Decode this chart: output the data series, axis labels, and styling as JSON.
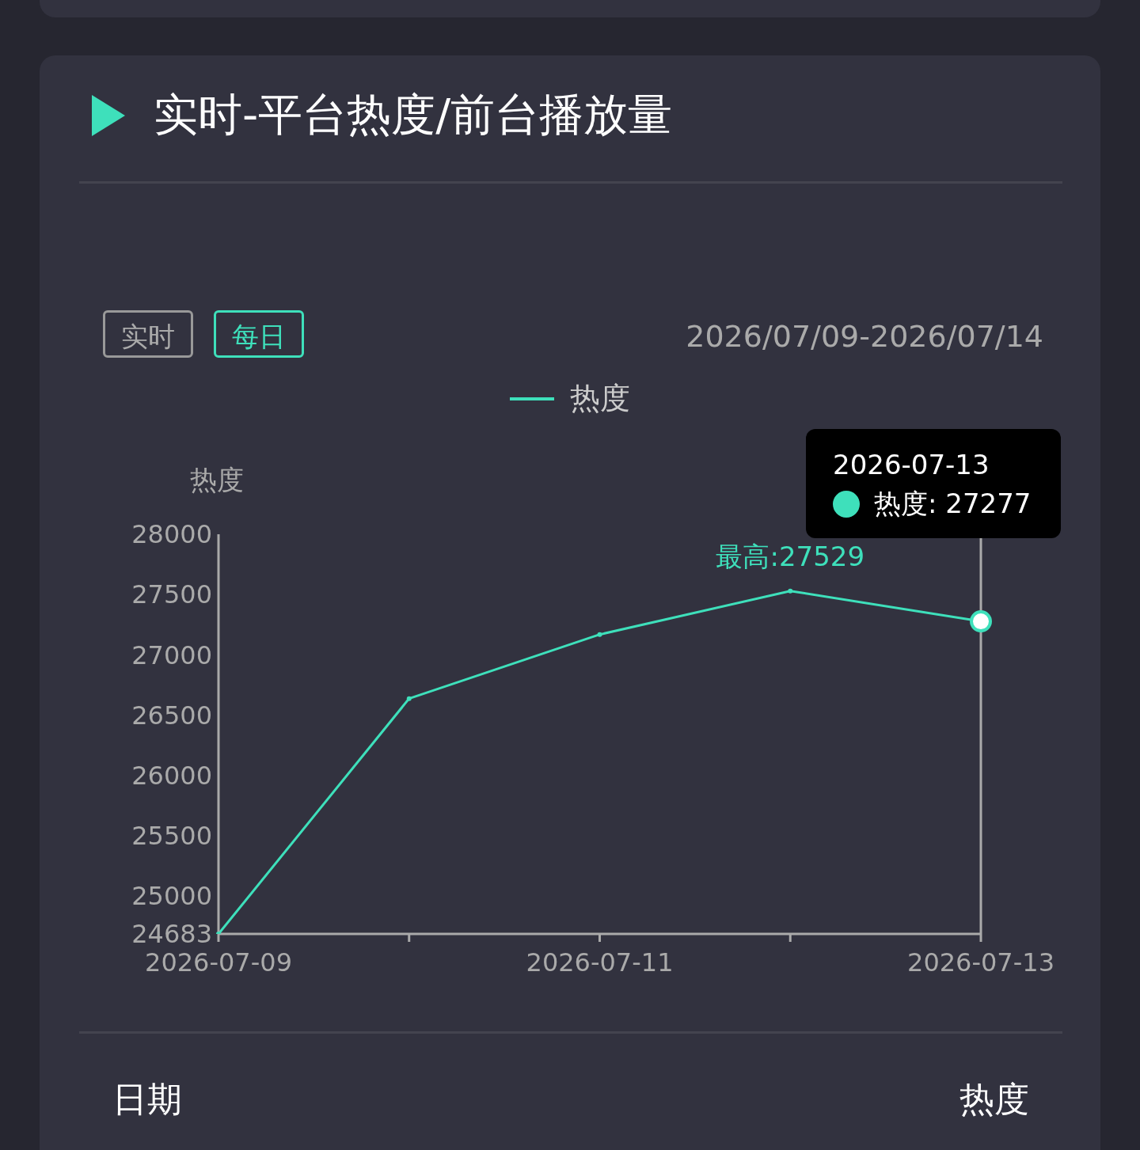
{
  "chart_data": {
    "type": "line",
    "title": "实时-平台热度/前台播放量",
    "subtitle": "2026/07/09-2026/07/14",
    "ylabel": "热度",
    "categories": [
      "2026-07-09",
      null,
      "2026-07-11",
      null,
      "2026-07-13"
    ],
    "series": [
      {
        "name": "热度",
        "color": "#3ee0bb",
        "values": [
          24683,
          26636,
          27168,
          27529,
          27277
        ]
      }
    ],
    "ylim": [
      24683,
      28000
    ],
    "yticks": [
      24683,
      25000,
      25500,
      26000,
      26500,
      27000,
      27500,
      28000
    ],
    "grid": false,
    "legend": "top",
    "marker": "circle",
    "line_style": "solid",
    "ref_lines": [
      {
        "axis": "x",
        "value": "2026-07-13",
        "color": "#aaaaaa"
      }
    ],
    "annotations": [
      "实时",
      "每日",
      "日期",
      "热度",
      "最高:27529",
      "2026-07-13",
      "热度: 27277"
    ]
  }
}
